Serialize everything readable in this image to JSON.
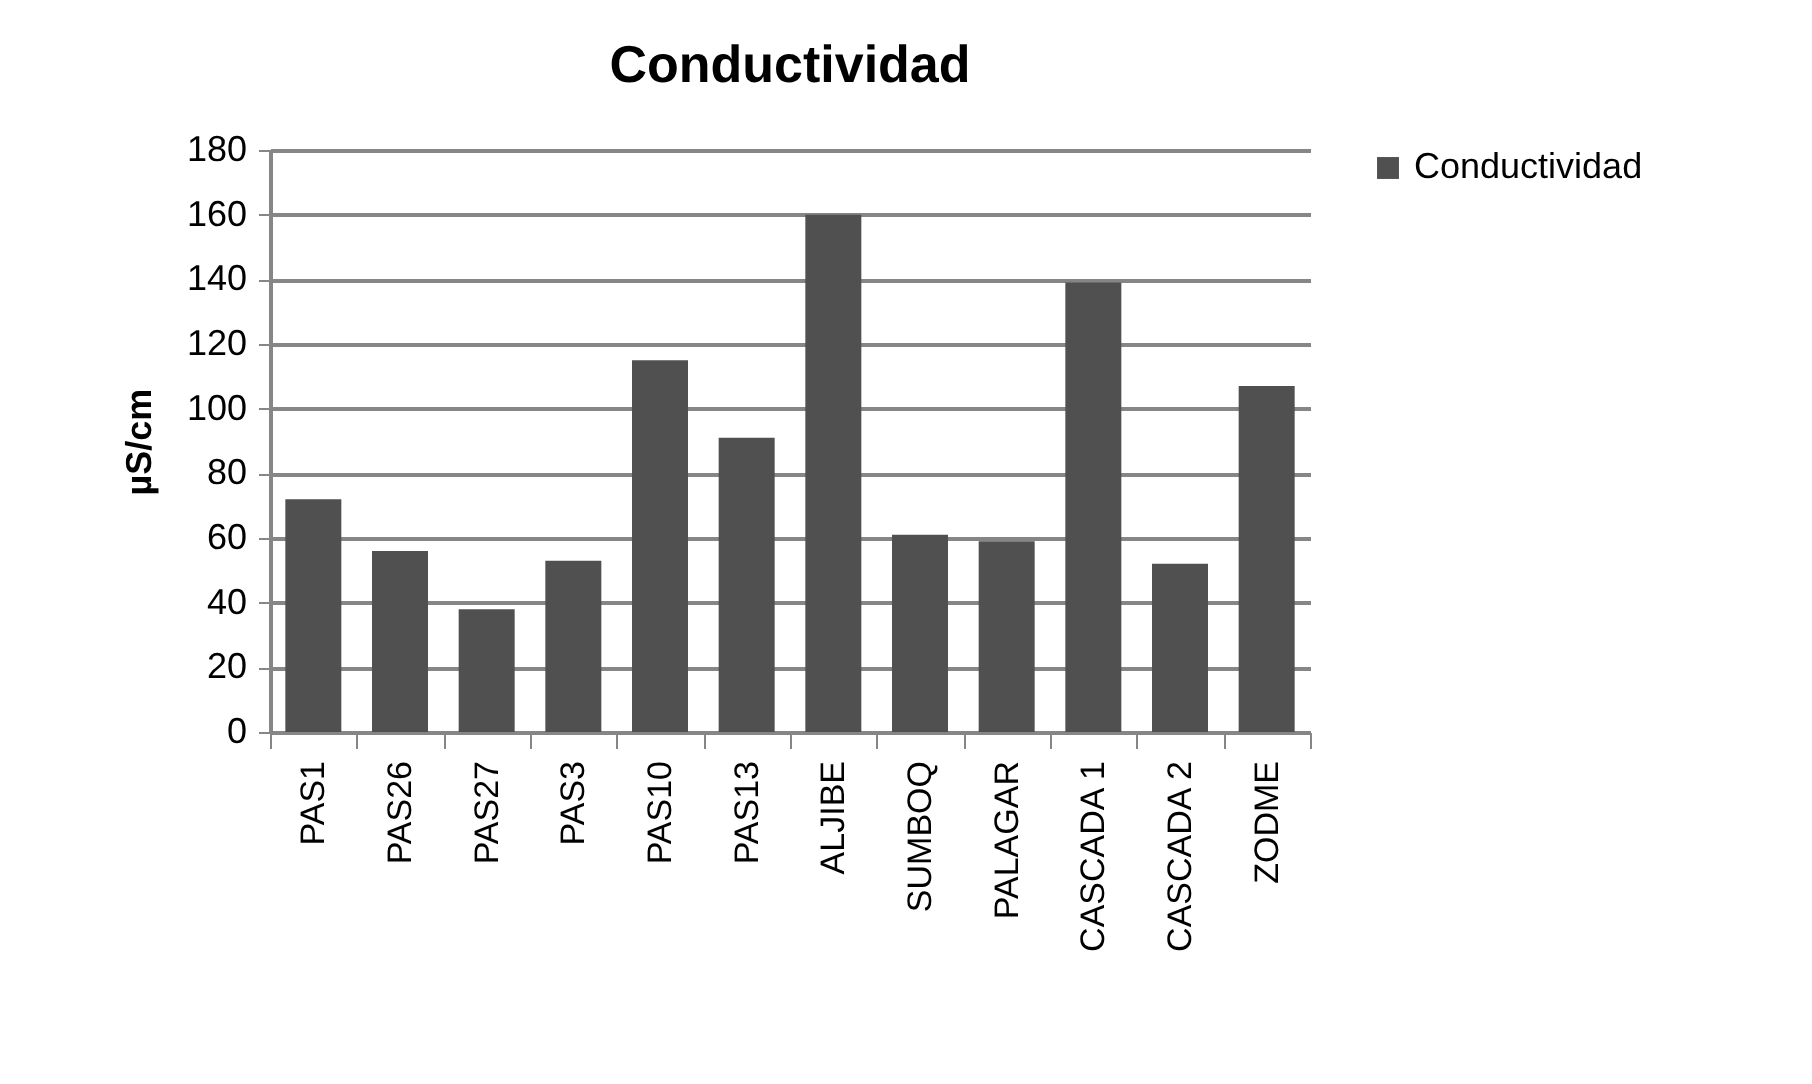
{
  "chart_data": {
    "type": "bar",
    "title": "Conductividad",
    "ylabel": "µS/cm",
    "categories": [
      "PAS1",
      "PAS26",
      "PAS27",
      "PAS3",
      "PAS10",
      "PAS13",
      "ALJIBE",
      "SUMBOQ",
      "PALAGAR",
      "CASCADA 1",
      "CASCADA 2",
      "ZODME"
    ],
    "series": [
      {
        "name": "Conductividad",
        "color": "#505050",
        "values": [
          72,
          56,
          38,
          53,
          115,
          91,
          160,
          61,
          59,
          139,
          52,
          107
        ]
      }
    ],
    "ylim": [
      0,
      180
    ],
    "yticks": [
      0,
      20,
      40,
      60,
      80,
      100,
      120,
      140,
      160,
      180
    ],
    "grid": "y",
    "legend": "right"
  }
}
